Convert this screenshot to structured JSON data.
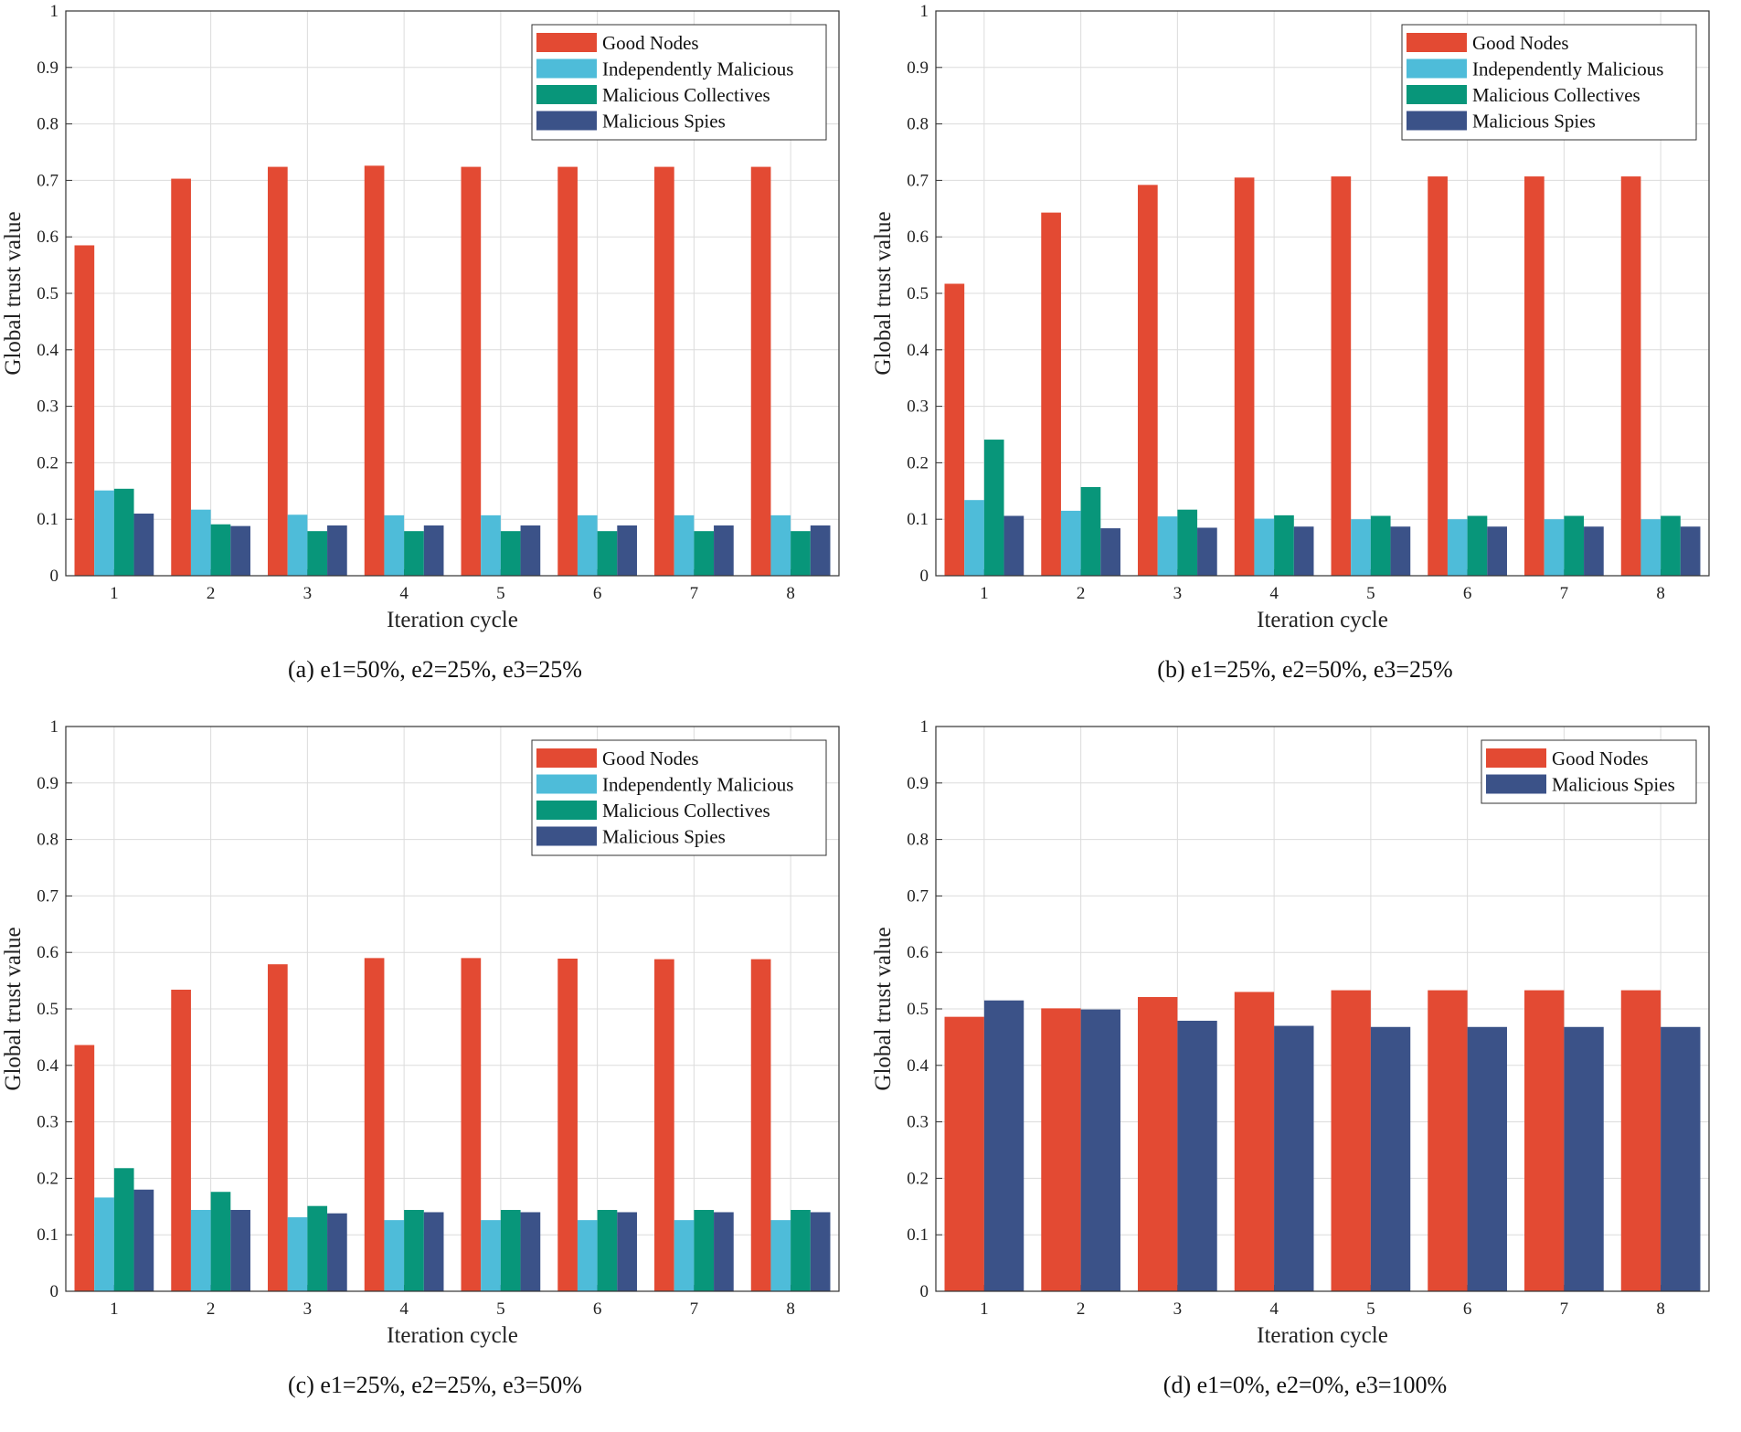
{
  "figure": {
    "colors": {
      "good": "#e34a33",
      "independent": "#4ebcd9",
      "collective": "#08967a",
      "spies": "#3b5288",
      "grid": "#dcdcdc",
      "axis": "#333333"
    }
  },
  "chart_data": [
    {
      "type": "bar",
      "caption": "(a) e1=50%, e2=25%, e3=25%",
      "xlabel": "Iteration cycle",
      "ylabel": "Global trust value",
      "ylim": [
        0,
        1
      ],
      "yticks": [
        "0",
        "0.1",
        "0.2",
        "0.3",
        "0.4",
        "0.5",
        "0.6",
        "0.7",
        "0.8",
        "0.9",
        "1"
      ],
      "categories": [
        "1",
        "2",
        "3",
        "4",
        "5",
        "6",
        "7",
        "8"
      ],
      "legend_position": "top-right",
      "series": [
        {
          "name": "Good Nodes",
          "color_key": "good",
          "values": [
            0.585,
            0.703,
            0.724,
            0.726,
            0.724,
            0.724,
            0.724,
            0.724
          ]
        },
        {
          "name": "Independently Malicious",
          "color_key": "independent",
          "values": [
            0.151,
            0.117,
            0.108,
            0.107,
            0.107,
            0.107,
            0.107,
            0.107
          ]
        },
        {
          "name": "Malicious Collectives",
          "color_key": "collective",
          "values": [
            0.154,
            0.091,
            0.079,
            0.079,
            0.079,
            0.079,
            0.079,
            0.079
          ]
        },
        {
          "name": "Malicious Spies",
          "color_key": "spies",
          "values": [
            0.11,
            0.088,
            0.089,
            0.089,
            0.089,
            0.089,
            0.089,
            0.089
          ]
        }
      ]
    },
    {
      "type": "bar",
      "caption": "(b) e1=25%, e2=50%, e3=25%",
      "xlabel": "Iteration cycle",
      "ylabel": "Global trust value",
      "ylim": [
        0,
        1
      ],
      "yticks": [
        "0",
        "0.1",
        "0.2",
        "0.3",
        "0.4",
        "0.5",
        "0.6",
        "0.7",
        "0.8",
        "0.9",
        "1"
      ],
      "categories": [
        "1",
        "2",
        "3",
        "4",
        "5",
        "6",
        "7",
        "8"
      ],
      "legend_position": "top-right",
      "series": [
        {
          "name": "Good Nodes",
          "color_key": "good",
          "values": [
            0.517,
            0.643,
            0.692,
            0.705,
            0.707,
            0.707,
            0.707,
            0.707
          ]
        },
        {
          "name": "Independently Malicious",
          "color_key": "independent",
          "values": [
            0.134,
            0.115,
            0.105,
            0.101,
            0.1,
            0.1,
            0.1,
            0.1
          ]
        },
        {
          "name": "Malicious Collectives",
          "color_key": "collective",
          "values": [
            0.241,
            0.157,
            0.117,
            0.107,
            0.106,
            0.106,
            0.106,
            0.106
          ]
        },
        {
          "name": "Malicious Spies",
          "color_key": "spies",
          "values": [
            0.106,
            0.084,
            0.085,
            0.087,
            0.087,
            0.087,
            0.087,
            0.087
          ]
        }
      ]
    },
    {
      "type": "bar",
      "caption": "(c) e1=25%, e2=25%, e3=50%",
      "xlabel": "Iteration cycle",
      "ylabel": "Global trust value",
      "ylim": [
        0,
        1
      ],
      "yticks": [
        "0",
        "0.1",
        "0.2",
        "0.3",
        "0.4",
        "0.5",
        "0.6",
        "0.7",
        "0.8",
        "0.9",
        "1"
      ],
      "categories": [
        "1",
        "2",
        "3",
        "4",
        "5",
        "6",
        "7",
        "8"
      ],
      "legend_position": "top-right",
      "series": [
        {
          "name": "Good Nodes",
          "color_key": "good",
          "values": [
            0.436,
            0.534,
            0.579,
            0.59,
            0.59,
            0.589,
            0.588,
            0.588
          ]
        },
        {
          "name": "Independently Malicious",
          "color_key": "independent",
          "values": [
            0.166,
            0.144,
            0.131,
            0.126,
            0.126,
            0.126,
            0.126,
            0.126
          ]
        },
        {
          "name": "Malicious Collectives",
          "color_key": "collective",
          "values": [
            0.218,
            0.176,
            0.151,
            0.144,
            0.144,
            0.144,
            0.144,
            0.144
          ]
        },
        {
          "name": "Malicious Spies",
          "color_key": "spies",
          "values": [
            0.18,
            0.144,
            0.138,
            0.14,
            0.14,
            0.14,
            0.14,
            0.14
          ]
        }
      ]
    },
    {
      "type": "bar",
      "caption": "(d) e1=0%, e2=0%, e3=100%",
      "xlabel": "Iteration cycle",
      "ylabel": "Global trust value",
      "ylim": [
        0,
        1
      ],
      "yticks": [
        "0",
        "0.1",
        "0.2",
        "0.3",
        "0.4",
        "0.5",
        "0.6",
        "0.7",
        "0.8",
        "0.9",
        "1"
      ],
      "categories": [
        "1",
        "2",
        "3",
        "4",
        "5",
        "6",
        "7",
        "8"
      ],
      "legend_position": "top-right",
      "series": [
        {
          "name": "Good Nodes",
          "color_key": "good",
          "values": [
            0.486,
            0.501,
            0.521,
            0.53,
            0.533,
            0.533,
            0.533,
            0.533
          ]
        },
        {
          "name": "Malicious Spies",
          "color_key": "spies",
          "values": [
            0.515,
            0.499,
            0.479,
            0.47,
            0.468,
            0.468,
            0.468,
            0.468
          ]
        }
      ]
    }
  ]
}
